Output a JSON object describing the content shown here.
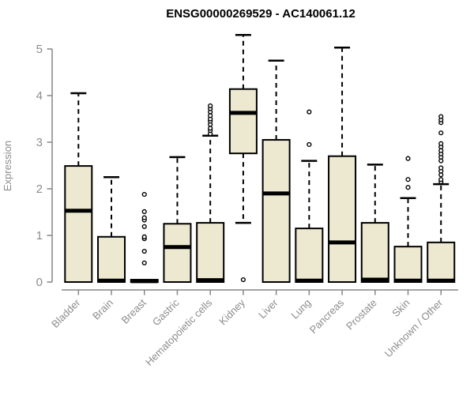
{
  "title": "ENSG00000269529 - AC140061.12",
  "chart_data": {
    "type": "boxplot",
    "title": "ENSG00000269529 - AC140061.12",
    "xlabel": "",
    "ylabel": "Expression",
    "ylim": [
      0,
      5
    ],
    "yticks": [
      0,
      1,
      2,
      3,
      4,
      5
    ],
    "grid": false,
    "legend": "none",
    "colors": {
      "box_fill": "#EDE8D0",
      "box_stroke": "#000000",
      "median": "#000000",
      "whisker": "#000000",
      "axis": "#868686",
      "tick_text": "#8c8c8c",
      "title_text": "#000000"
    },
    "categories": [
      "Bladder",
      "Brain",
      "Breast",
      "Gastric",
      "Hematopoietic cells",
      "Kidney",
      "Liver",
      "Lung",
      "Pancreas",
      "Prostate",
      "Skin",
      "Unknown / Other"
    ],
    "boxes": [
      {
        "category": "Bladder",
        "whisker_low": 0,
        "q1": 0,
        "median": 1.53,
        "q3": 2.49,
        "whisker_high": 4.05,
        "outliers": []
      },
      {
        "category": "Brain",
        "whisker_low": 0,
        "q1": 0,
        "median": 0.03,
        "q3": 0.97,
        "whisker_high": 2.25,
        "outliers": []
      },
      {
        "category": "Breast",
        "whisker_low": 0,
        "q1": 0,
        "median": 0.02,
        "q3": 0.05,
        "whisker_high": 0.05,
        "outliers": [
          0.41,
          0.66,
          0.93,
          0.97,
          1.19,
          1.33,
          1.38,
          1.51,
          1.88
        ]
      },
      {
        "category": "Gastric",
        "whisker_low": 0,
        "q1": 0,
        "median": 0.75,
        "q3": 1.25,
        "whisker_high": 2.68,
        "outliers": []
      },
      {
        "category": "Hematopoietic cells",
        "whisker_low": 0,
        "q1": 0,
        "median": 0.04,
        "q3": 1.27,
        "whisker_high": 3.14,
        "outliers": [
          3.18,
          3.25,
          3.3,
          3.38,
          3.45,
          3.5,
          3.57,
          3.65,
          3.72,
          3.78
        ]
      },
      {
        "category": "Kidney",
        "whisker_low": 1.27,
        "q1": 2.76,
        "median": 3.63,
        "q3": 4.14,
        "whisker_high": 5.3,
        "outliers": [
          0.05
        ]
      },
      {
        "category": "Liver",
        "whisker_low": 0,
        "q1": 0,
        "median": 1.9,
        "q3": 3.05,
        "whisker_high": 4.75,
        "outliers": []
      },
      {
        "category": "Lung",
        "whisker_low": 0,
        "q1": 0,
        "median": 0.03,
        "q3": 1.15,
        "whisker_high": 2.6,
        "outliers": [
          2.95,
          3.65
        ]
      },
      {
        "category": "Pancreas",
        "whisker_low": 0,
        "q1": 0,
        "median": 0.85,
        "q3": 2.7,
        "whisker_high": 5.03,
        "outliers": []
      },
      {
        "category": "Prostate",
        "whisker_low": 0,
        "q1": 0,
        "median": 0.05,
        "q3": 1.27,
        "whisker_high": 2.52,
        "outliers": []
      },
      {
        "category": "Skin",
        "whisker_low": 0,
        "q1": 0,
        "median": 0.03,
        "q3": 0.76,
        "whisker_high": 1.8,
        "outliers": [
          2.03,
          2.2,
          2.65
        ]
      },
      {
        "category": "Unknown / Other",
        "whisker_low": 0,
        "q1": 0,
        "median": 0.03,
        "q3": 0.85,
        "whisker_high": 2.1,
        "outliers": [
          2.15,
          2.2,
          2.3,
          2.38,
          2.45,
          2.6,
          2.68,
          2.75,
          2.82,
          2.9,
          2.97,
          3.2,
          3.42,
          3.48,
          3.55
        ]
      }
    ]
  }
}
